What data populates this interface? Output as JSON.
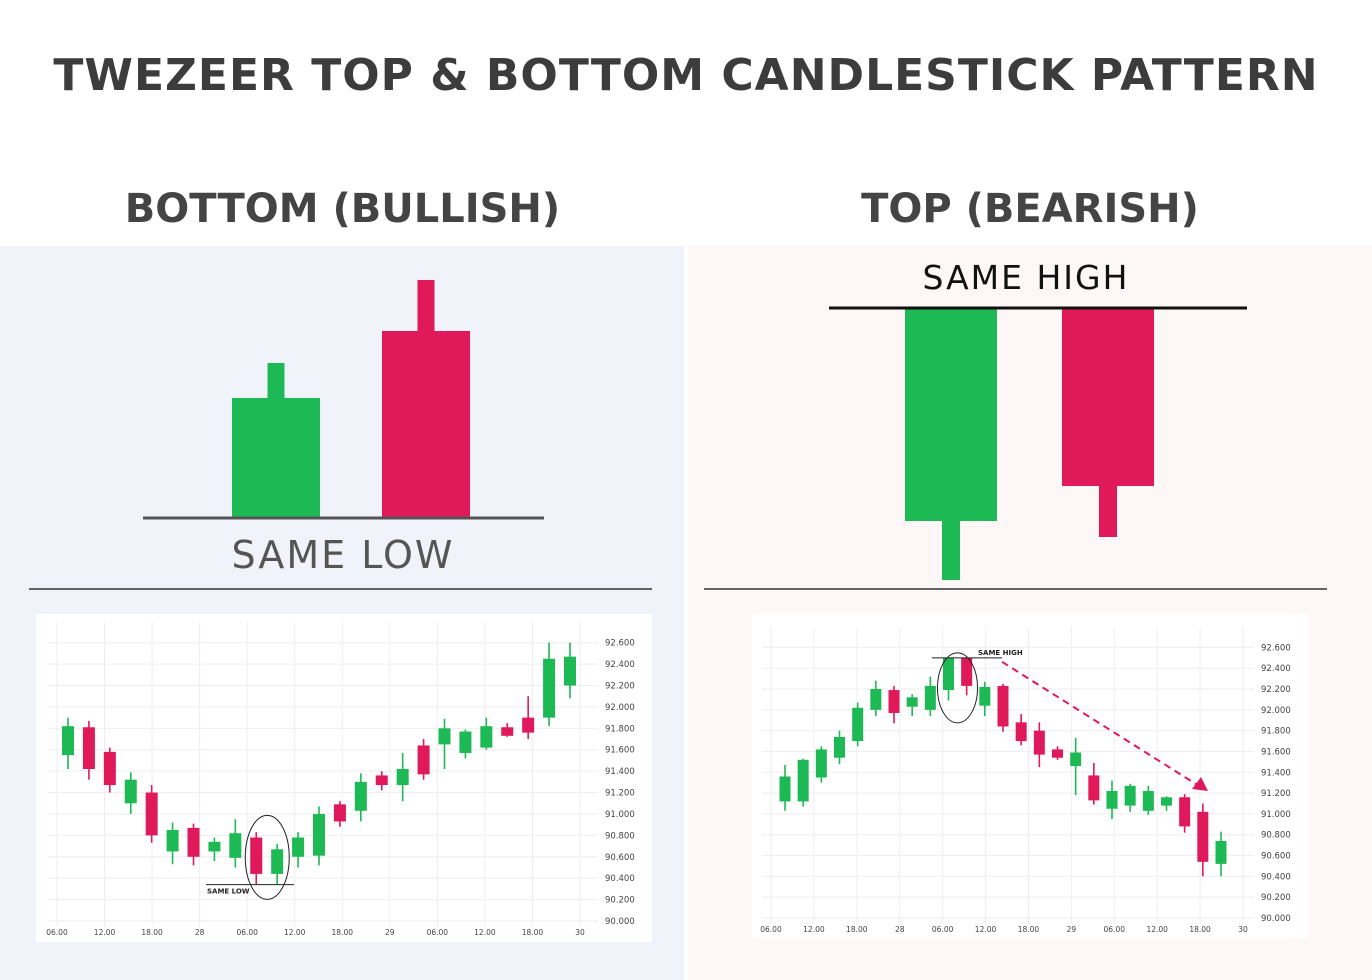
{
  "title": "TWEZEER TOP & BOTTOM CANDLESTICK PATTERN",
  "colors": {
    "bull": "#1db954",
    "bear": "#e0195a",
    "text": "#444444",
    "line": "#555555",
    "grid": "#eeeeee"
  },
  "bottom": {
    "heading": "BOTTOM (BULLISH)",
    "line_label": "SAME LOW",
    "pattern": [
      {
        "dir": "up",
        "open": 0,
        "close": 120,
        "low": 0,
        "high": 155
      },
      {
        "dir": "down",
        "open": 187,
        "close": 0,
        "low": 0,
        "high": 238
      }
    ]
  },
  "top": {
    "heading": "TOP (BEARISH)",
    "line_label": "SAME HIGH",
    "pattern": [
      {
        "dir": "up",
        "open": 59,
        "close": 272,
        "low": 0,
        "high": 272
      },
      {
        "dir": "down",
        "open": 272,
        "close": 94,
        "low": 43,
        "high": 272
      }
    ]
  },
  "chart_data": [
    {
      "type": "candlestick",
      "annotation": "SAME LOW",
      "ylim": [
        90.0,
        92.7
      ],
      "y_ticks": [
        "92.600",
        "92.400",
        "92.200",
        "92.000",
        "91.800",
        "91.600",
        "91.400",
        "91.200",
        "91.000",
        "90.800",
        "90.600",
        "90.400",
        "90.200",
        "90.000"
      ],
      "x_ticks": [
        "06.00",
        "12.00",
        "18.00",
        "28",
        "06.00",
        "12.00",
        "18.00",
        "29",
        "06.00",
        "12.00",
        "18.00",
        "30"
      ],
      "candles": [
        {
          "open": 91.55,
          "close": 91.82,
          "high": 91.9,
          "low": 91.42
        },
        {
          "open": 91.81,
          "close": 91.42,
          "high": 91.87,
          "low": 91.32
        },
        {
          "open": 91.58,
          "close": 91.27,
          "high": 91.62,
          "low": 91.2
        },
        {
          "open": 91.1,
          "close": 91.32,
          "high": 91.39,
          "low": 91.0
        },
        {
          "open": 91.2,
          "close": 90.8,
          "high": 91.27,
          "low": 90.73
        },
        {
          "open": 90.65,
          "close": 90.85,
          "high": 90.92,
          "low": 90.53
        },
        {
          "open": 90.87,
          "close": 90.6,
          "high": 90.91,
          "low": 90.52
        },
        {
          "open": 90.65,
          "close": 90.74,
          "high": 90.78,
          "low": 90.56
        },
        {
          "open": 90.59,
          "close": 90.82,
          "high": 90.95,
          "low": 90.5
        },
        {
          "open": 90.78,
          "close": 90.44,
          "high": 90.83,
          "low": 90.34
        },
        {
          "open": 90.44,
          "close": 90.67,
          "high": 90.72,
          "low": 90.34
        },
        {
          "open": 90.6,
          "close": 90.78,
          "high": 90.83,
          "low": 90.5
        },
        {
          "open": 90.61,
          "close": 91.0,
          "high": 91.07,
          "low": 90.52
        },
        {
          "open": 91.09,
          "close": 90.93,
          "high": 91.12,
          "low": 90.88
        },
        {
          "open": 91.03,
          "close": 91.3,
          "high": 91.38,
          "low": 90.93
        },
        {
          "open": 91.36,
          "close": 91.27,
          "high": 91.4,
          "low": 91.22
        },
        {
          "open": 91.27,
          "close": 91.42,
          "high": 91.57,
          "low": 91.12
        },
        {
          "open": 91.64,
          "close": 91.37,
          "high": 91.7,
          "low": 91.32
        },
        {
          "open": 91.65,
          "close": 91.8,
          "high": 91.89,
          "low": 91.42
        },
        {
          "open": 91.57,
          "close": 91.77,
          "high": 91.79,
          "low": 91.52
        },
        {
          "open": 91.62,
          "close": 91.82,
          "high": 91.9,
          "low": 91.6
        },
        {
          "open": 91.81,
          "close": 91.73,
          "high": 91.85,
          "low": 91.72
        },
        {
          "open": 91.9,
          "close": 91.76,
          "high": 92.1,
          "low": 91.7
        },
        {
          "open": 91.9,
          "close": 92.45,
          "high": 92.6,
          "low": 91.82
        },
        {
          "open": 92.2,
          "close": 92.47,
          "high": 92.6,
          "low": 92.08
        }
      ]
    },
    {
      "type": "candlestick",
      "annotation": "SAME HIGH",
      "ylim": [
        90.0,
        92.7
      ],
      "y_ticks": [
        "92.600",
        "92.400",
        "92.200",
        "92.000",
        "91.800",
        "91.600",
        "91.400",
        "91.200",
        "91.000",
        "90.800",
        "90.600",
        "90.400",
        "90.200",
        "90.000"
      ],
      "x_ticks": [
        "06.00",
        "12.00",
        "18.00",
        "28",
        "06.00",
        "12.00",
        "18.00",
        "29",
        "06.00",
        "12.00",
        "18.00",
        "30"
      ],
      "candles": [
        {
          "open": 91.12,
          "close": 91.36,
          "high": 91.47,
          "low": 91.03
        },
        {
          "open": 91.12,
          "close": 91.52,
          "high": 91.53,
          "low": 91.07
        },
        {
          "open": 91.35,
          "close": 91.62,
          "high": 91.65,
          "low": 91.3
        },
        {
          "open": 91.54,
          "close": 91.74,
          "high": 91.8,
          "low": 91.48
        },
        {
          "open": 91.7,
          "close": 92.02,
          "high": 92.07,
          "low": 91.65
        },
        {
          "open": 92.0,
          "close": 92.2,
          "high": 92.28,
          "low": 91.94
        },
        {
          "open": 92.19,
          "close": 91.97,
          "high": 92.23,
          "low": 91.87
        },
        {
          "open": 92.03,
          "close": 92.12,
          "high": 92.15,
          "low": 91.94
        },
        {
          "open": 92.0,
          "close": 92.23,
          "high": 92.32,
          "low": 91.94
        },
        {
          "open": 92.19,
          "close": 92.5,
          "high": 92.5,
          "low": 92.09
        },
        {
          "open": 92.5,
          "close": 92.23,
          "high": 92.5,
          "low": 92.14
        },
        {
          "open": 92.04,
          "close": 92.22,
          "high": 92.27,
          "low": 91.94
        },
        {
          "open": 92.23,
          "close": 91.84,
          "high": 92.25,
          "low": 91.79
        },
        {
          "open": 91.88,
          "close": 91.7,
          "high": 91.96,
          "low": 91.66
        },
        {
          "open": 91.8,
          "close": 91.57,
          "high": 91.88,
          "low": 91.45
        },
        {
          "open": 91.62,
          "close": 91.54,
          "high": 91.65,
          "low": 91.52
        },
        {
          "open": 91.46,
          "close": 91.59,
          "high": 91.73,
          "low": 91.18
        },
        {
          "open": 91.37,
          "close": 91.13,
          "high": 91.49,
          "low": 91.09
        },
        {
          "open": 91.05,
          "close": 91.22,
          "high": 91.32,
          "low": 90.95
        },
        {
          "open": 91.08,
          "close": 91.27,
          "high": 91.29,
          "low": 91.02
        },
        {
          "open": 91.03,
          "close": 91.22,
          "high": 91.27,
          "low": 90.99
        },
        {
          "open": 91.08,
          "close": 91.16,
          "high": 91.17,
          "low": 91.03
        },
        {
          "open": 91.16,
          "close": 90.88,
          "high": 91.19,
          "low": 90.82
        },
        {
          "open": 91.02,
          "close": 90.54,
          "high": 91.1,
          "low": 90.4
        },
        {
          "open": 90.52,
          "close": 90.74,
          "high": 90.83,
          "low": 90.4
        }
      ]
    }
  ]
}
